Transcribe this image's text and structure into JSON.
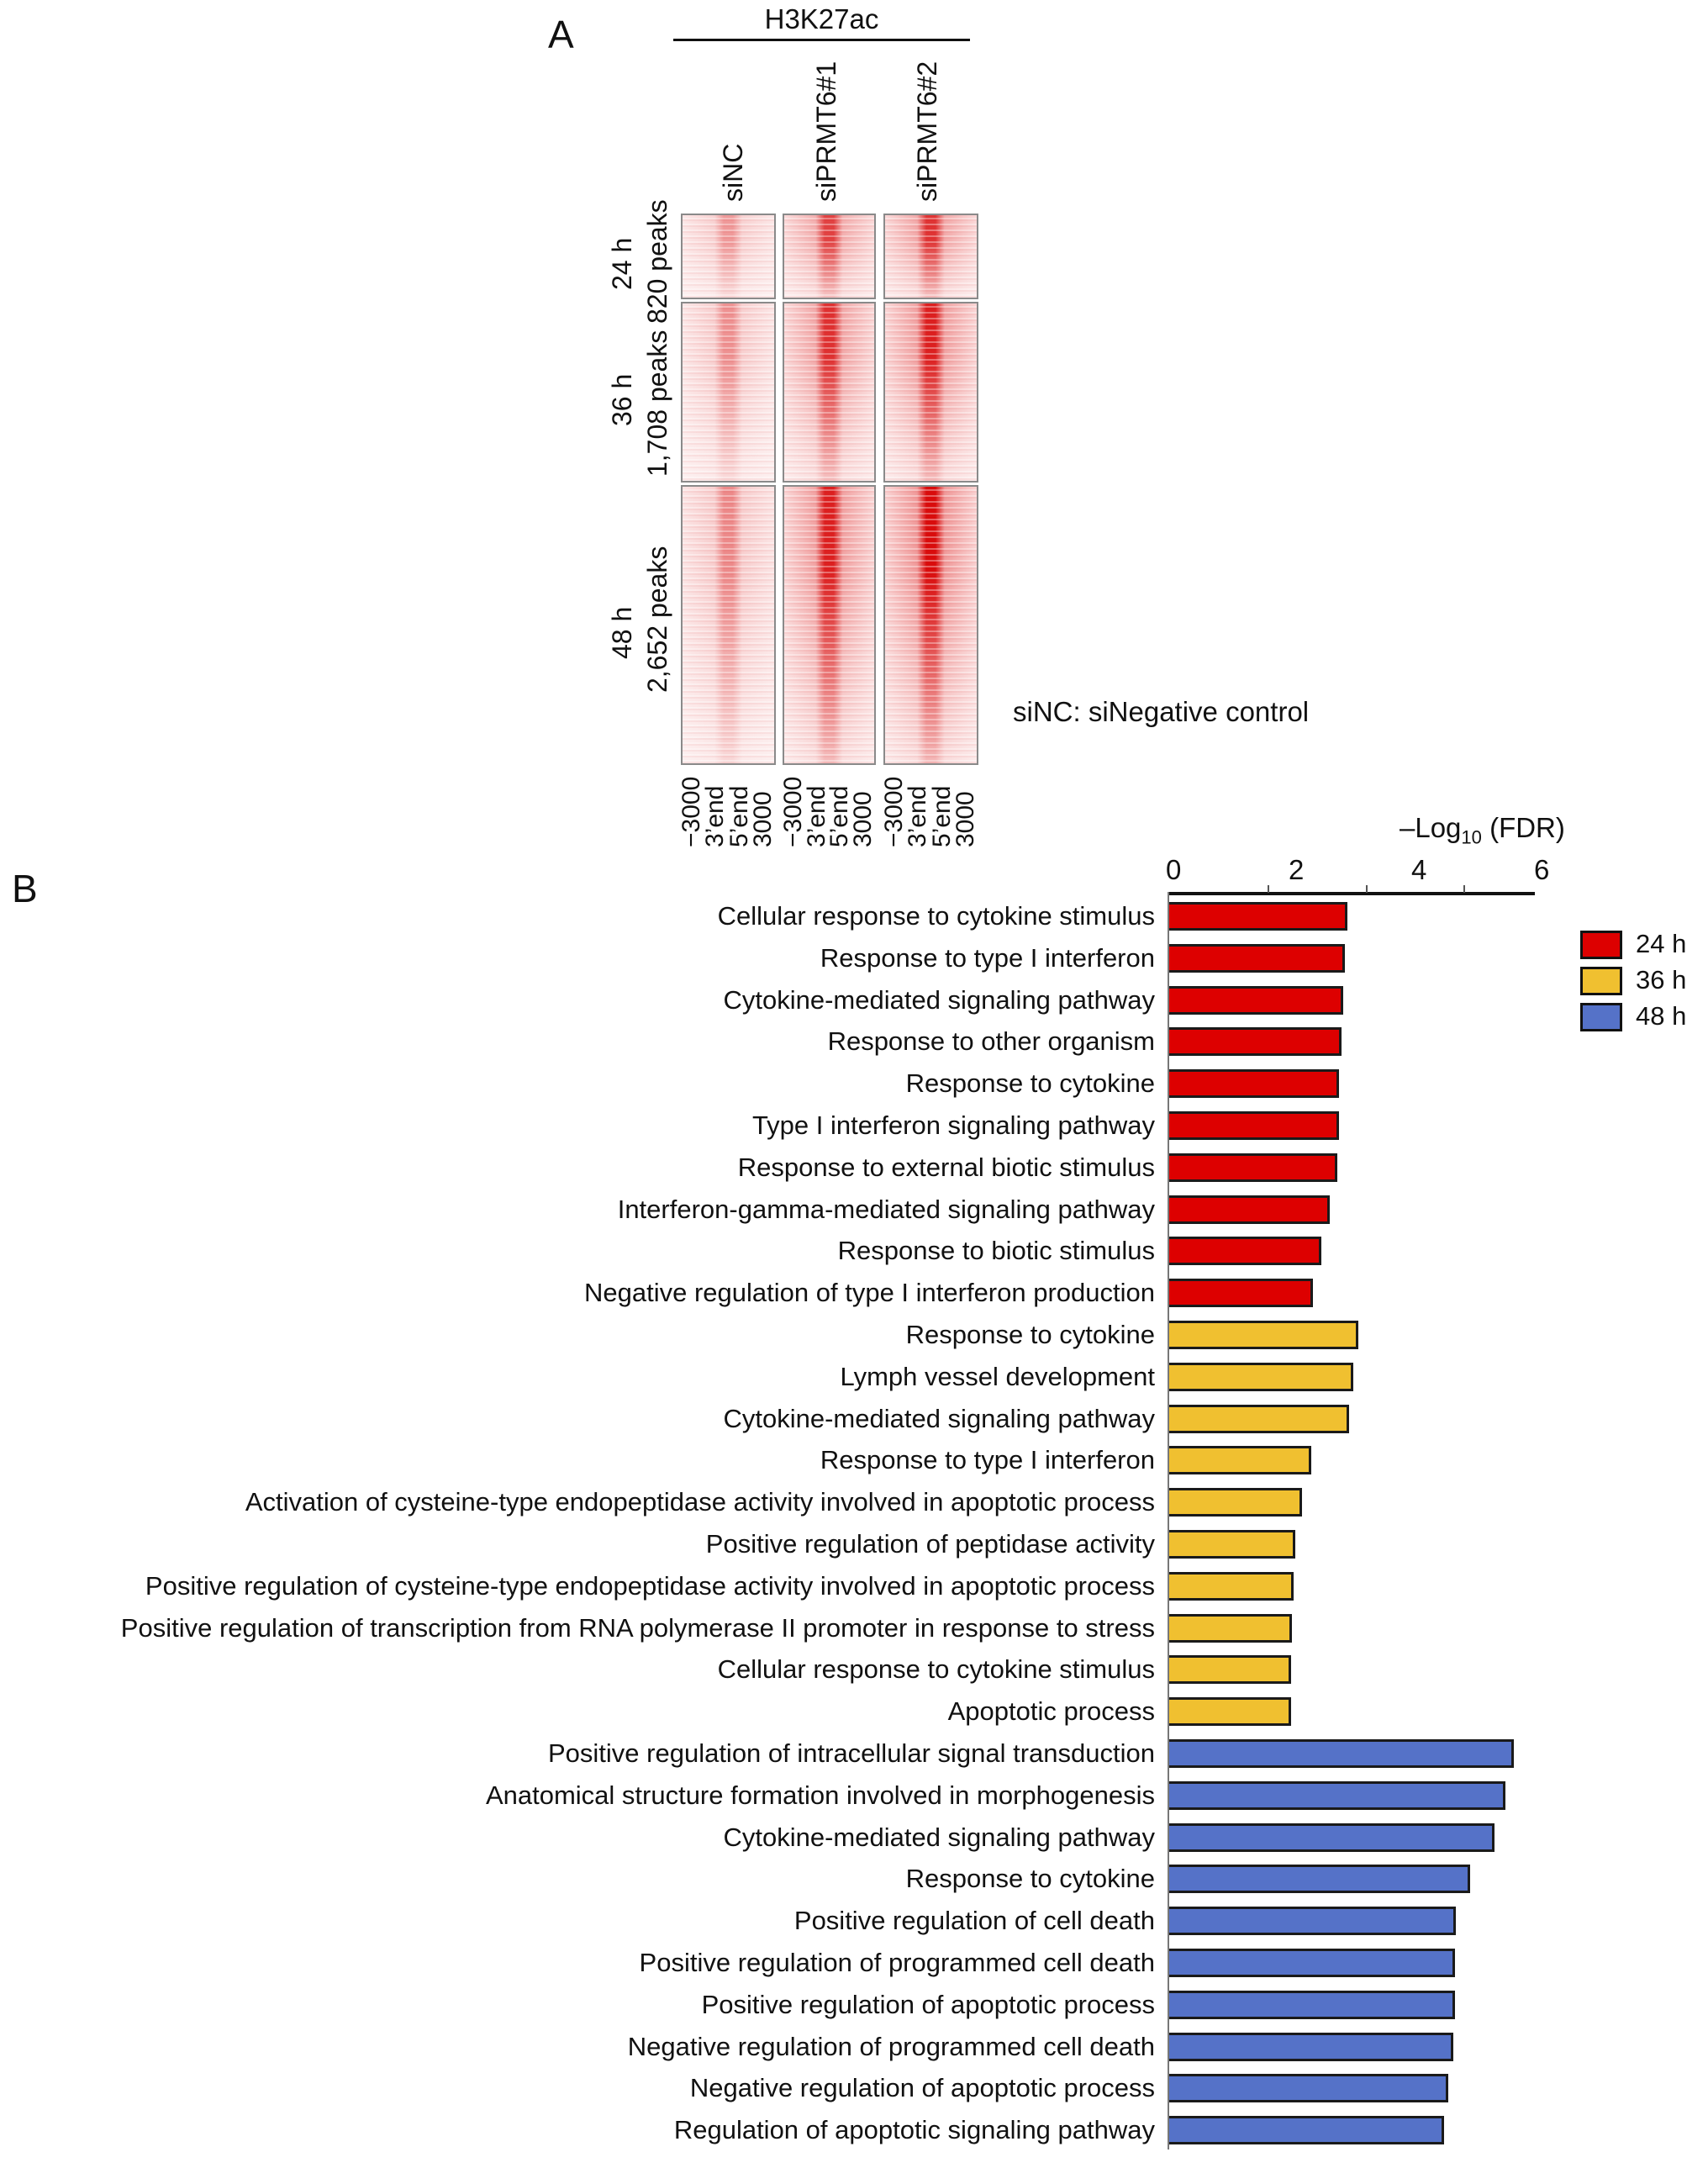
{
  "panel_a": {
    "letter": "A",
    "mark": "H3K27ac",
    "columns": [
      "siNC",
      "siPRMT6#1",
      "siPRMT6#2"
    ],
    "column_intensity": [
      0.35,
      0.9,
      1.0
    ],
    "rows": [
      {
        "time": "24 h",
        "peaks": "820 peaks",
        "intensity": 0.8
      },
      {
        "time": "36 h",
        "peaks": "1,708 peaks",
        "intensity": 0.9
      },
      {
        "time": "48 h",
        "peaks": "2,652 peaks",
        "intensity": 1.0
      }
    ],
    "x_ticks": [
      "−3000",
      "3’end",
      "5’end",
      "3000"
    ],
    "note": "siNC: siNegative control"
  },
  "panel_b": {
    "letter": "B"
  },
  "chart_data": {
    "type": "bar",
    "orientation": "horizontal",
    "title": "",
    "xlabel": "–Log10 (FDR)",
    "xlabel_main": "–Log",
    "xlabel_sub": "10",
    "xlabel_tail": " (FDR)",
    "xlim": [
      0,
      6
    ],
    "x_ticks": [
      "0",
      "2",
      "4",
      "6"
    ],
    "legend_position": "right",
    "colors": {
      "24 h": "#dd0000",
      "36 h": "#f0c030",
      "48 h": "#5572c8"
    },
    "series": [
      {
        "name": "24 h",
        "categories": [
          "Cellular response to cytokine stimulus",
          "Response to type I interferon",
          "Cytokine-mediated signaling pathway",
          "Response to other organism",
          "Response to cytokine",
          "Type I interferon signaling pathway",
          "Response to external biotic stimulus",
          "Interferon-gamma-mediated signaling pathway",
          "Response to biotic stimulus",
          "Negative regulation of type I interferon production"
        ],
        "values": [
          2.9,
          2.86,
          2.84,
          2.81,
          2.77,
          2.77,
          2.74,
          2.62,
          2.48,
          2.34
        ]
      },
      {
        "name": "36 h",
        "categories": [
          "Response to cytokine",
          "Lymph vessel development",
          "Cytokine-mediated signaling pathway",
          "Response to type I interferon",
          "Activation of cysteine-type endopeptidase activity involved in apoptotic process",
          "Positive regulation of peptidase activity",
          "Positive regulation of cysteine-type endopeptidase activity involved in apoptotic process",
          "Positive regulation of transcription from RNA polymerase II promoter in response to stress",
          "Cellular response to cytokine stimulus",
          "Apoptotic process"
        ],
        "values": [
          3.08,
          3.0,
          2.93,
          2.32,
          2.16,
          2.05,
          2.03,
          2.0,
          1.99,
          1.99
        ]
      },
      {
        "name": "48 h",
        "categories": [
          "Positive regulation of intracellular signal transduction",
          "Anatomical structure formation involved in morphogenesis",
          "Cytokine-mediated signaling pathway",
          "Response to cytokine",
          "Positive regulation of cell death",
          "Positive regulation of programmed cell death",
          "Positive regulation of apoptotic process",
          "Negative regulation of programmed cell death",
          "Negative regulation of apoptotic process",
          "Regulation of apoptotic signaling pathway"
        ],
        "values": [
          5.62,
          5.48,
          5.3,
          4.9,
          4.67,
          4.66,
          4.66,
          4.63,
          4.55,
          4.48
        ]
      }
    ]
  }
}
